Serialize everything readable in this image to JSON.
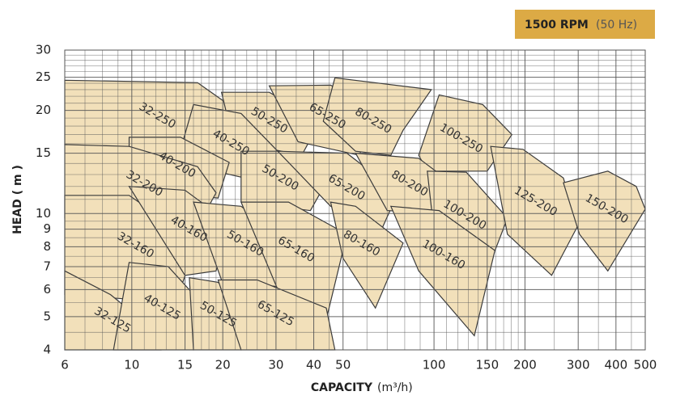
{
  "chart_data": {
    "type": "region",
    "title": "1500 RPM",
    "subtitle": "(50 Hz)",
    "xlabel": "CAPACITY",
    "xunit": "(m³/h)",
    "ylabel": "HEAD ( m )",
    "xscale": "log",
    "yscale": "log",
    "xlim": [
      6,
      500
    ],
    "ylim": [
      4,
      30
    ],
    "xticks": [
      6,
      10,
      15,
      20,
      30,
      40,
      50,
      100,
      150,
      200,
      300,
      400,
      500
    ],
    "yticks": [
      4,
      5,
      6,
      7,
      8,
      9,
      10,
      15,
      20,
      25,
      30
    ],
    "xgrid": [
      7,
      8,
      9,
      11,
      12,
      13,
      14,
      16,
      17,
      18,
      19,
      22,
      24,
      26,
      28,
      35,
      45,
      60,
      70,
      80,
      90,
      110,
      120,
      130,
      140,
      160,
      170,
      180,
      190,
      250,
      350,
      450
    ],
    "ygrid": [
      4.5,
      5.5,
      6.5,
      7.5,
      8.5,
      9.5,
      11,
      12,
      13,
      14,
      16,
      17,
      18,
      19,
      21,
      22,
      23,
      24,
      26,
      27,
      28,
      29
    ],
    "color": "#f2e0ba",
    "edge_color": "#3a3a3a",
    "badge_color": "#dcaa45",
    "regions": [
      {
        "name": "32-250",
        "x": [
          6,
          16.5,
          23,
          19.3,
          6
        ],
        "y": [
          24.5,
          24.1,
          19.6,
          14.5,
          15.9
        ]
      },
      {
        "name": "50-250",
        "x": [
          19.8,
          28.5,
          42,
          36.5,
          21.7
        ],
        "y": [
          22.6,
          22.6,
          18.6,
          14.8,
          16.2
        ]
      },
      {
        "name": "65-250",
        "x": [
          28.5,
          45.5,
          66,
          56.5,
          35.5
        ],
        "y": [
          23.6,
          23.7,
          19.6,
          14.8,
          16.2
        ]
      },
      {
        "name": "80-250",
        "x": [
          47,
          98,
          79,
          72,
          55,
          43
        ],
        "y": [
          24.9,
          23,
          17.5,
          14.8,
          15.2,
          18.6
        ]
      },
      {
        "name": "100-250",
        "x": [
          104,
          145,
          181,
          150,
          95,
          89
        ],
        "y": [
          22.2,
          20.8,
          17,
          13.3,
          13.3,
          14.8
        ]
      },
      {
        "name": "40-250",
        "x": [
          16,
          23,
          30.4,
          27.7,
          14.1
        ],
        "y": [
          20.8,
          19.6,
          15.2,
          12.3,
          14.1
        ]
      },
      {
        "name": "40-200",
        "x": [
          9.8,
          14.5,
          21,
          19.3,
          9.8
        ],
        "y": [
          16.7,
          16.7,
          14.1,
          11.1,
          11.7
        ]
      },
      {
        "name": "32-200",
        "x": [
          6,
          9.8,
          16.5,
          19,
          16,
          6
        ],
        "y": [
          15.9,
          15.7,
          13.7,
          11.5,
          8.7,
          9.7
        ]
      },
      {
        "name": "50-200",
        "x": [
          23,
          30.4,
          45.5,
          39,
          23
        ],
        "y": [
          15.2,
          15.2,
          13,
          10.2,
          10.8
        ]
      },
      {
        "name": "65-200",
        "x": [
          30.4,
          51.5,
          76,
          66,
          45.5
        ],
        "y": [
          15.2,
          15,
          11.5,
          8.7,
          10.5
        ]
      },
      {
        "name": "80-200",
        "x": [
          55,
          89,
          114,
          101,
          70
        ],
        "y": [
          15,
          14.5,
          12.3,
          10,
          10.2
        ]
      },
      {
        "name": "100-200",
        "x": [
          95,
          128,
          175,
          150,
          101
        ],
        "y": [
          13.3,
          13.2,
          9.7,
          6.8,
          8.2
        ]
      },
      {
        "name": "125-200",
        "x": [
          154,
          197,
          268,
          299,
          245,
          175
        ],
        "y": [
          15.7,
          15.4,
          12.7,
          9.2,
          6.6,
          8.7
        ]
      },
      {
        "name": "150-200",
        "x": [
          268,
          376,
          467,
          500,
          376,
          303
        ],
        "y": [
          12.3,
          13.3,
          12,
          10.3,
          6.8,
          8.7
        ]
      },
      {
        "name": "32-160",
        "x": [
          6,
          9.8,
          15,
          16,
          14,
          6
        ],
        "y": [
          11.3,
          11.3,
          8.7,
          7.8,
          5.5,
          5.8
        ]
      },
      {
        "name": "40-160",
        "x": [
          9.8,
          15,
          21,
          19,
          15
        ],
        "y": [
          12,
          11.7,
          9.4,
          6.8,
          6.6
        ]
      },
      {
        "name": "50-160",
        "x": [
          16,
          23,
          33,
          31.3,
          19.8
        ],
        "y": [
          10.8,
          10.5,
          8.2,
          6.1,
          6.4
        ]
      },
      {
        "name": "65-160",
        "x": [
          23,
          33,
          51.5,
          44,
          30.4
        ],
        "y": [
          10.8,
          10.8,
          8.7,
          4.9,
          6
        ]
      },
      {
        "name": "80-160",
        "x": [
          45.5,
          55,
          79,
          64,
          50
        ],
        "y": [
          10.8,
          10.5,
          8.2,
          5.3,
          7.4
        ]
      },
      {
        "name": "100-160",
        "x": [
          72,
          104,
          159,
          136,
          89
        ],
        "y": [
          10.5,
          10.2,
          7.8,
          4.4,
          6.8
        ]
      },
      {
        "name": "32-125",
        "x": [
          6,
          8.5,
          12.5,
          12.5,
          6
        ],
        "y": [
          6.8,
          5.8,
          4.4,
          4,
          4
        ]
      },
      {
        "name": "40-125",
        "x": [
          9.8,
          13.2,
          17.6,
          16,
          8.7
        ],
        "y": [
          7.2,
          7,
          5.3,
          4,
          4
        ]
      },
      {
        "name": "50-125",
        "x": [
          15.5,
          19.3,
          24.5,
          23,
          16
        ],
        "y": [
          6.5,
          6.3,
          5.1,
          4,
          4
        ]
      },
      {
        "name": "65-125",
        "x": [
          19.3,
          26,
          44,
          47,
          23
        ],
        "y": [
          6.4,
          6.4,
          5.3,
          4,
          4
        ]
      }
    ]
  }
}
